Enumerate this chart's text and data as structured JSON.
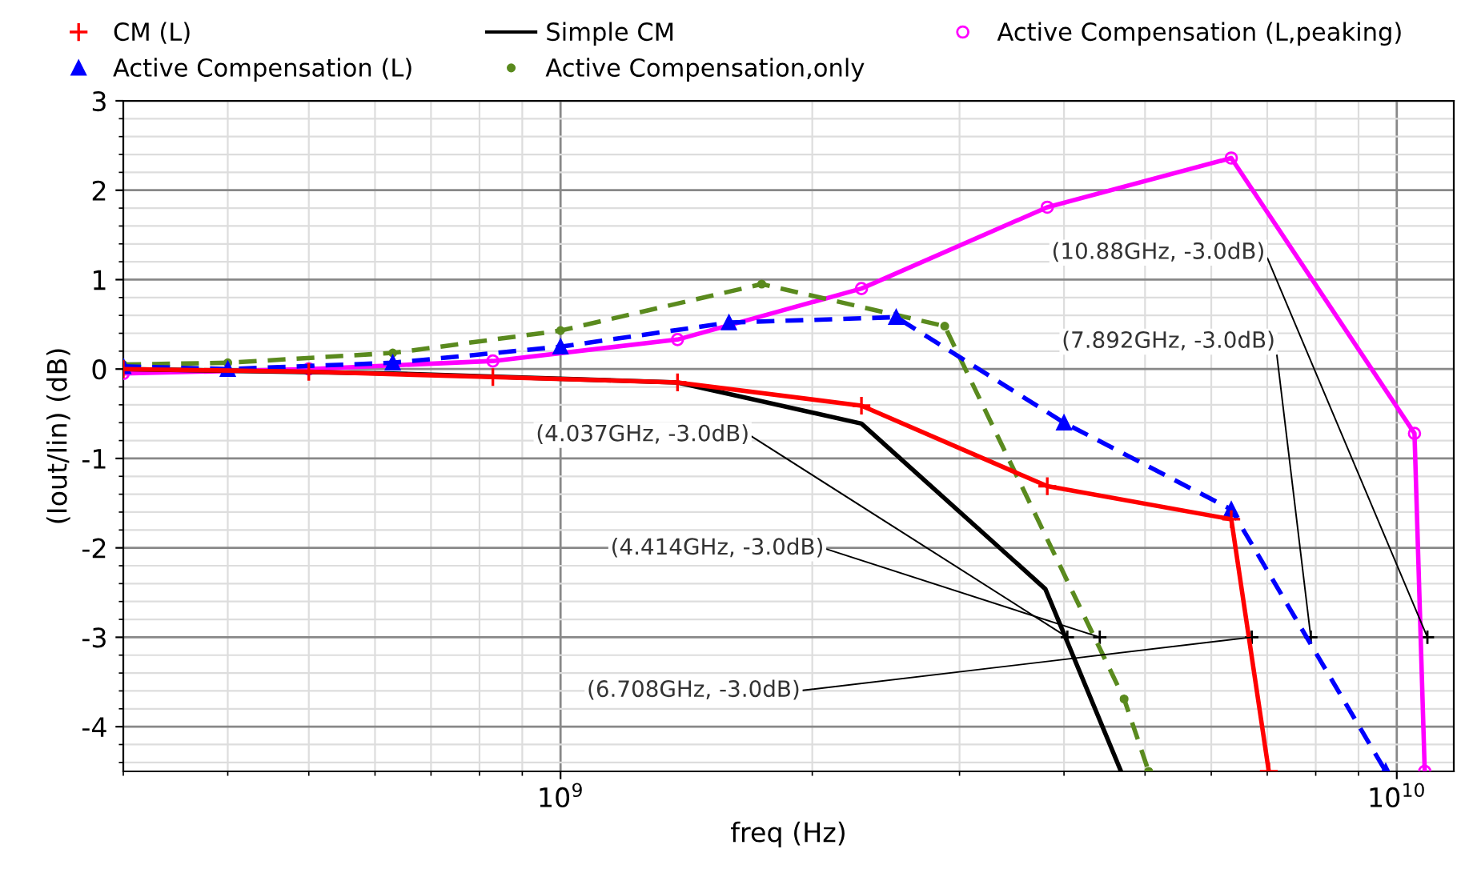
{
  "chart_data": {
    "type": "line",
    "xlabel": "freq (Hz)",
    "ylabel": "(Iout/Iin) (dB)",
    "log": "x",
    "xlim": [
      300000000.0,
      11700000000.0
    ],
    "xticks": [
      {
        "value": 1000000000.0,
        "label": "10$^{9}$"
      },
      {
        "value": 10000000000.0,
        "label": "10$^{10}$"
      }
    ],
    "ylim": [
      -4.5,
      3
    ],
    "yticks": [
      -4,
      -3,
      -2,
      -1,
      0,
      1,
      2,
      3
    ],
    "grid": true,
    "legend": "top",
    "series": [
      {
        "name": "CM (L)",
        "color": "#ff0000",
        "marker": "cross",
        "line_style": "solid",
        "x": [
          300000000.0,
          500000000.0,
          830000000.0,
          1380000000.0,
          2290000000.0,
          3820000000.0,
          6340000000.0,
          7030000000.0
        ],
        "values": [
          0.0,
          -0.03,
          -0.09,
          -0.15,
          -0.41,
          -1.31,
          -1.68,
          -4.5
        ]
      },
      {
        "name": "Active Compensation (L)",
        "color": "#0000ff",
        "marker": "triangle",
        "line_style": "dashed",
        "x": [
          300000000.0,
          400000000.0,
          630000000.0,
          1000000000.0,
          1590000000.0,
          2520000000.0,
          4000000000.0,
          6340000000.0,
          9700000000.0
        ],
        "values": [
          0.03,
          0.0,
          0.07,
          0.25,
          0.52,
          0.58,
          -0.6,
          -1.57,
          -4.5
        ]
      },
      {
        "name": "Simple CM",
        "color": "#000000",
        "marker": "none",
        "line_style": "solid",
        "x": [
          300000000.0,
          630000000.0,
          1380000000.0,
          2290000000.0,
          3800000000.0,
          4680000000.0
        ],
        "values": [
          0.0,
          -0.05,
          -0.15,
          -0.61,
          -2.46,
          -4.5
        ]
      },
      {
        "name": "Active Compensation,only",
        "color": "#5a8a1e",
        "marker": "circle",
        "line_style": "dashed",
        "x": [
          300000000.0,
          400000000.0,
          630000000.0,
          1000000000.0,
          1740000000.0,
          2880000000.0,
          4720000000.0,
          5050000000.0
        ],
        "values": [
          0.05,
          0.07,
          0.18,
          0.43,
          0.95,
          0.48,
          -3.69,
          -4.5
        ]
      },
      {
        "name": "Active Compensation (L,peaking)",
        "color": "#ff00ff",
        "marker": "circle_open",
        "line_style": "solid",
        "x": [
          300000000.0,
          500000000.0,
          830000000.0,
          1380000000.0,
          2290000000.0,
          3820000000.0,
          6340000000.0,
          10500000000.0,
          10800000000.0
        ],
        "values": [
          -0.05,
          0.0,
          0.09,
          0.33,
          0.9,
          1.81,
          2.36,
          -0.72,
          -4.5
        ]
      }
    ],
    "annotations": [
      {
        "text": "(4.037GHz, -3.0dB)",
        "x": 4037000000.0,
        "y": -3.0
      },
      {
        "text": "(4.414GHz, -3.0dB)",
        "x": 4414000000.0,
        "y": -3.0
      },
      {
        "text": "(6.708GHz, -3.0dB)",
        "x": 6708000000.0,
        "y": -3.0
      },
      {
        "text": "(7.892GHz, -3.0dB)",
        "x": 7892000000.0,
        "y": -3.0
      },
      {
        "text": "(10.88GHz, -3.0dB)",
        "x": 10880000000.0,
        "y": -3.0
      }
    ]
  }
}
